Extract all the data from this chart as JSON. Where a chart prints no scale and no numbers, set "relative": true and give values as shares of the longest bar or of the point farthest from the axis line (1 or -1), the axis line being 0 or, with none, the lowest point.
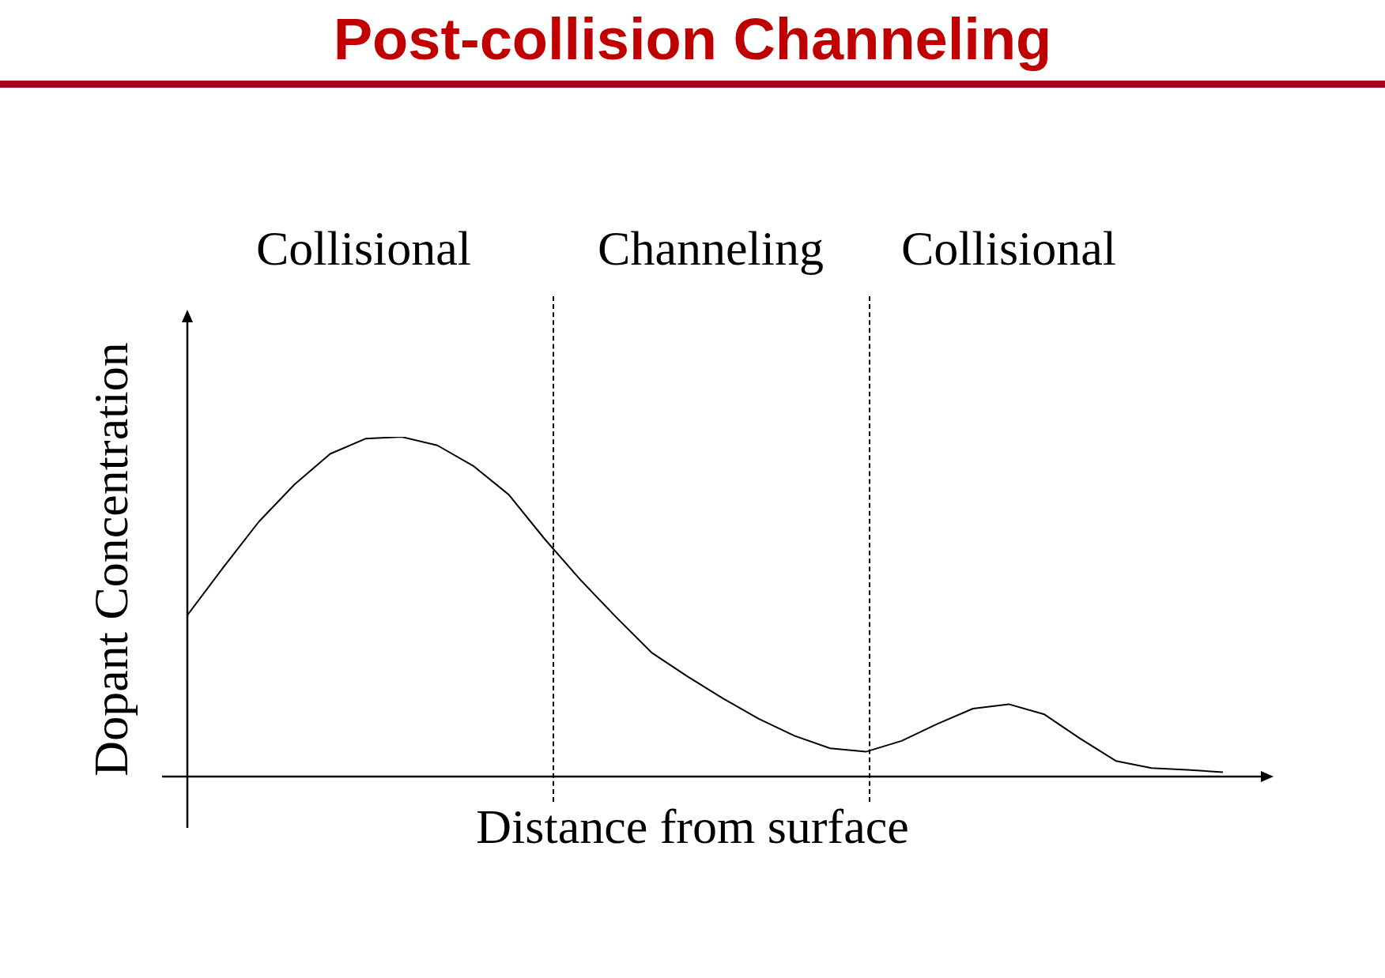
{
  "chart_data": {
    "type": "line",
    "title": "Post-collision Channeling",
    "xlabel": "Distance from surface",
    "ylabel": "Dopant Concentration",
    "relative": true,
    "legend": false,
    "marker": "none",
    "line_style": "solid",
    "categories": [
      null,
      null,
      null,
      null,
      null,
      null,
      null,
      null,
      null,
      null,
      null,
      null,
      null,
      null,
      null,
      null,
      null,
      null,
      null,
      null,
      null,
      null,
      null,
      null,
      null,
      null,
      null,
      null,
      null,
      null
    ],
    "series": [
      {
        "color": "#000000",
        "values": [
          0.475,
          0.615,
          0.75,
          0.86,
          0.95,
          0.995,
          1.0,
          0.975,
          0.915,
          0.83,
          0.7,
          0.58,
          0.47,
          0.365,
          0.295,
          0.23,
          0.17,
          0.12,
          0.083,
          0.073,
          0.105,
          0.155,
          0.2,
          0.213,
          0.183,
          0.112,
          0.046,
          0.025,
          0.02,
          0.013
        ]
      }
    ],
    "annotations": [
      "Collisional",
      "Channeling",
      "Collisional"
    ]
  }
}
